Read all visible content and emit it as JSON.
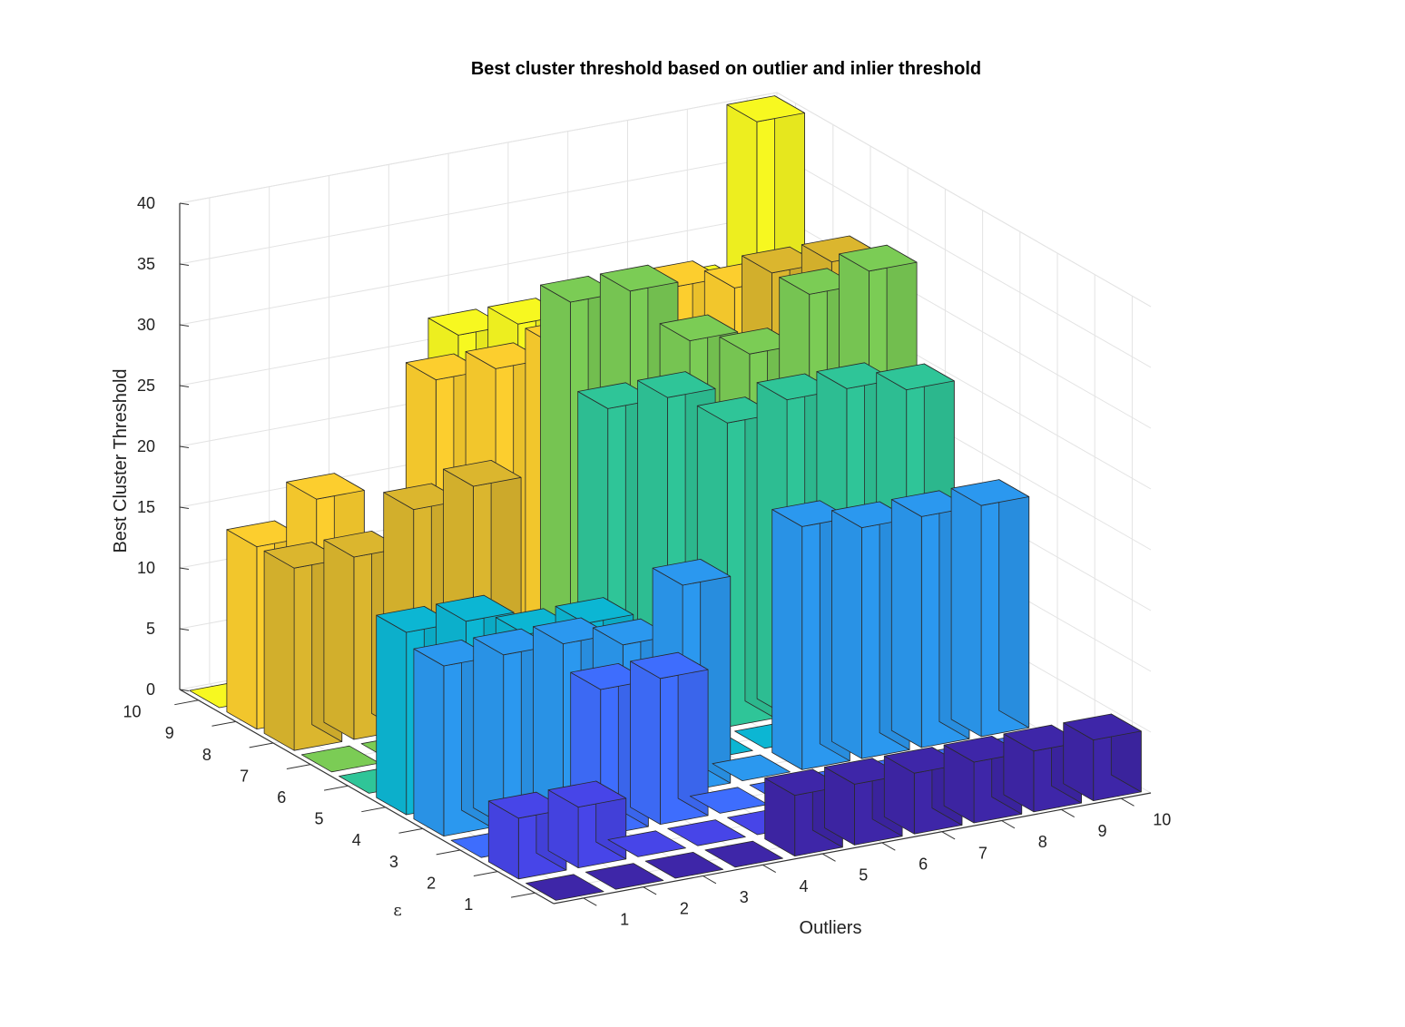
{
  "chart_data": {
    "type": "bar3",
    "title": "Best cluster threshold based on outlier and inlier threshold",
    "xlabel": "Outliers",
    "ylabel": "ε",
    "zlabel": "Best Cluster Threshold",
    "x_categories": [
      "1",
      "2",
      "3",
      "4",
      "5",
      "6",
      "7",
      "8",
      "9",
      "10"
    ],
    "y_categories": [
      "1",
      "2",
      "3",
      "4",
      "5",
      "6",
      "7",
      "8",
      "9",
      "10"
    ],
    "z_ticks": [
      "0",
      "5",
      "10",
      "15",
      "20",
      "25",
      "30",
      "35",
      "40"
    ],
    "zlim": [
      0,
      40
    ],
    "grid": true,
    "colors_by_epsilon": [
      "#3e26a8",
      "#4745e8",
      "#3e6dfd",
      "#2b98ef",
      "#0cb6d3",
      "#2fc598",
      "#7bcc55",
      "#dbb62e",
      "#fcce2e",
      "#f7f820"
    ],
    "values_by_epsilon": [
      [
        0,
        0,
        0,
        0,
        5,
        5,
        5,
        5,
        5,
        5
      ],
      [
        5,
        5,
        0,
        0,
        0,
        0,
        0,
        0,
        0,
        0
      ],
      [
        0,
        0,
        12,
        12,
        0,
        0,
        0,
        0,
        0,
        0
      ],
      [
        14,
        14,
        14,
        13,
        17,
        0,
        20,
        19,
        19,
        19
      ],
      [
        15,
        15,
        13,
        13,
        0,
        0,
        0,
        0,
        0,
        0
      ],
      [
        0,
        0,
        0,
        0,
        28,
        28,
        25,
        26,
        26,
        25
      ],
      [
        0,
        0,
        0,
        0,
        35,
        35,
        30,
        28,
        32,
        33
      ],
      [
        15,
        15,
        18,
        19,
        0,
        0,
        0,
        0,
        32,
        32
      ],
      [
        15,
        18,
        0,
        26,
        26,
        27,
        29,
        30,
        29,
        29
      ],
      [
        0,
        0,
        0,
        0,
        27,
        27,
        27,
        27,
        27,
        40
      ]
    ]
  }
}
